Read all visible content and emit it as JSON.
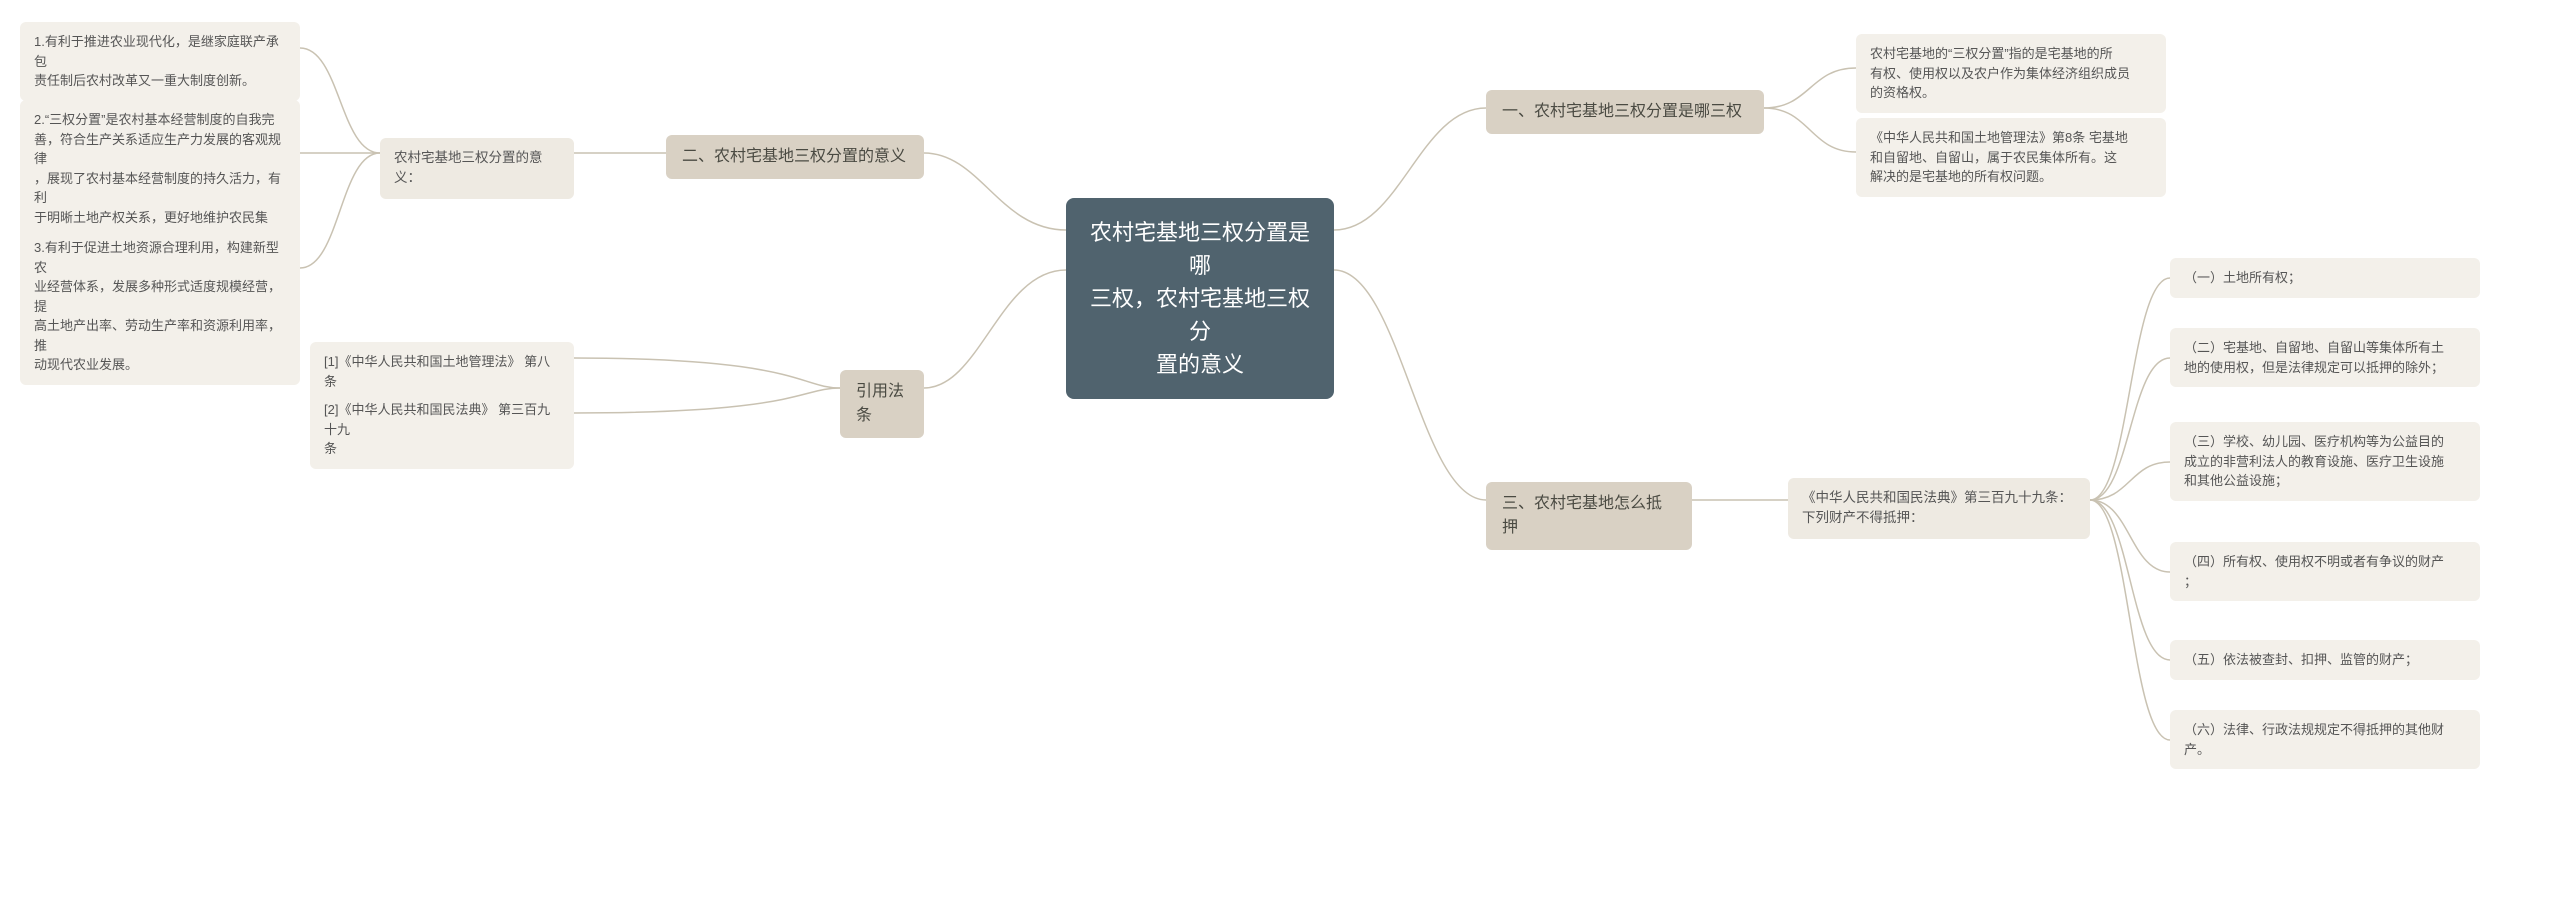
{
  "colors": {
    "background": "#ffffff",
    "root_bg": "#50636e",
    "root_text": "#ffffff",
    "branch_bg": "#d9d1c4",
    "sub_bg": "#eeeae2",
    "leaf_bg": "#f3f0ea",
    "connector": "#c9c2b2",
    "text": "#4a4a42"
  },
  "root": {
    "text": "农村宅基地三权分置是哪\n三权，农村宅基地三权分\n置的意义"
  },
  "right": {
    "b1": {
      "label": "一、农村宅基地三权分置是哪三权"
    },
    "b1_leaves": [
      {
        "text": "农村宅基地的“三权分置”指的是宅基地的所\n有权、使用权以及农户作为集体经济组织成员\n的资格权。"
      },
      {
        "text": "《中华人民共和国土地管理法》第8条 宅基地\n和自留地、自留山，属于农民集体所有。这\n解决的是宅基地的所有权问题。"
      }
    ],
    "b3": {
      "label": "三、农村宅基地怎么抵押"
    },
    "b3_sub": {
      "text": "《中华人民共和国民法典》第三百九十九条：\n下列财产不得抵押："
    },
    "b3_leaves": [
      {
        "text": "（一）土地所有权；"
      },
      {
        "text": "（二）宅基地、自留地、自留山等集体所有土\n地的使用权，但是法律规定可以抵押的除外；"
      },
      {
        "text": "（三）学校、幼儿园、医疗机构等为公益目的\n成立的非营利法人的教育设施、医疗卫生设施\n和其他公益设施；"
      },
      {
        "text": "（四）所有权、使用权不明或者有争议的财产\n；"
      },
      {
        "text": "（五）依法被查封、扣押、监管的财产；"
      },
      {
        "text": "（六）法律、行政法规规定不得抵押的其他财\n产。"
      }
    ]
  },
  "left": {
    "b2": {
      "label": "二、农村宅基地三权分置的意义"
    },
    "b2_sub": {
      "text": "农村宅基地三权分置的意义："
    },
    "b2_leaves": [
      {
        "text": "1.有利于推进农业现代化，是继家庭联产承包\n责任制后农村改革又一重大制度创新。"
      },
      {
        "text": "2.“三权分置”是农村基本经营制度的自我完\n善，符合生产关系适应生产力发展的客观规律\n，展现了农村基本经营制度的持久活力，有利\n于明晰土地产权关系，更好地维护农民集体、\n承包农户、经营主体的权益；"
      },
      {
        "text": "3.有利于促进土地资源合理利用，构建新型农\n业经营体系，发展多种形式适度规模经营，提\n高土地产出率、劳动生产率和资源利用率，推\n动现代农业发展。"
      }
    ],
    "b4": {
      "label": "引用法条"
    },
    "b4_leaves": [
      {
        "text": "[1]《中华人民共和国土地管理法》 第八条"
      },
      {
        "text": "[2]《中华人民共和国民法典》 第三百九十九\n条"
      }
    ]
  }
}
